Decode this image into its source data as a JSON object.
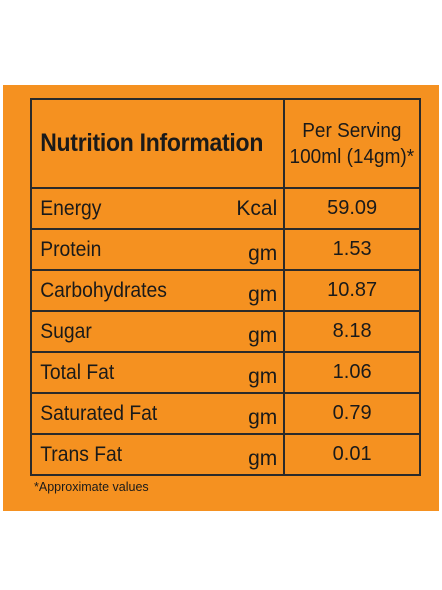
{
  "table": {
    "title": "Nutrition Information",
    "serving_line1": "Per Serving",
    "serving_line2": "100ml (14gm)*",
    "rows": [
      {
        "name": "Energy",
        "unit": "Kcal",
        "value": "59.09"
      },
      {
        "name": "Protein",
        "unit": "gm",
        "value": "1.53"
      },
      {
        "name": "Carbohydrates",
        "unit": "gm",
        "value": "10.87"
      },
      {
        "name": "Sugar",
        "unit": "gm",
        "value": "8.18"
      },
      {
        "name": "Total Fat",
        "unit": "gm",
        "value": "1.06"
      },
      {
        "name": "Saturated Fat",
        "unit": "gm",
        "value": "0.79"
      },
      {
        "name": "Trans Fat",
        "unit": "gm",
        "value": "0.01"
      }
    ]
  },
  "footnote": "*Approximate values",
  "colors": {
    "panel_background": "#F59120",
    "border": "#2a2a2a",
    "text": "#1a1a1a"
  }
}
